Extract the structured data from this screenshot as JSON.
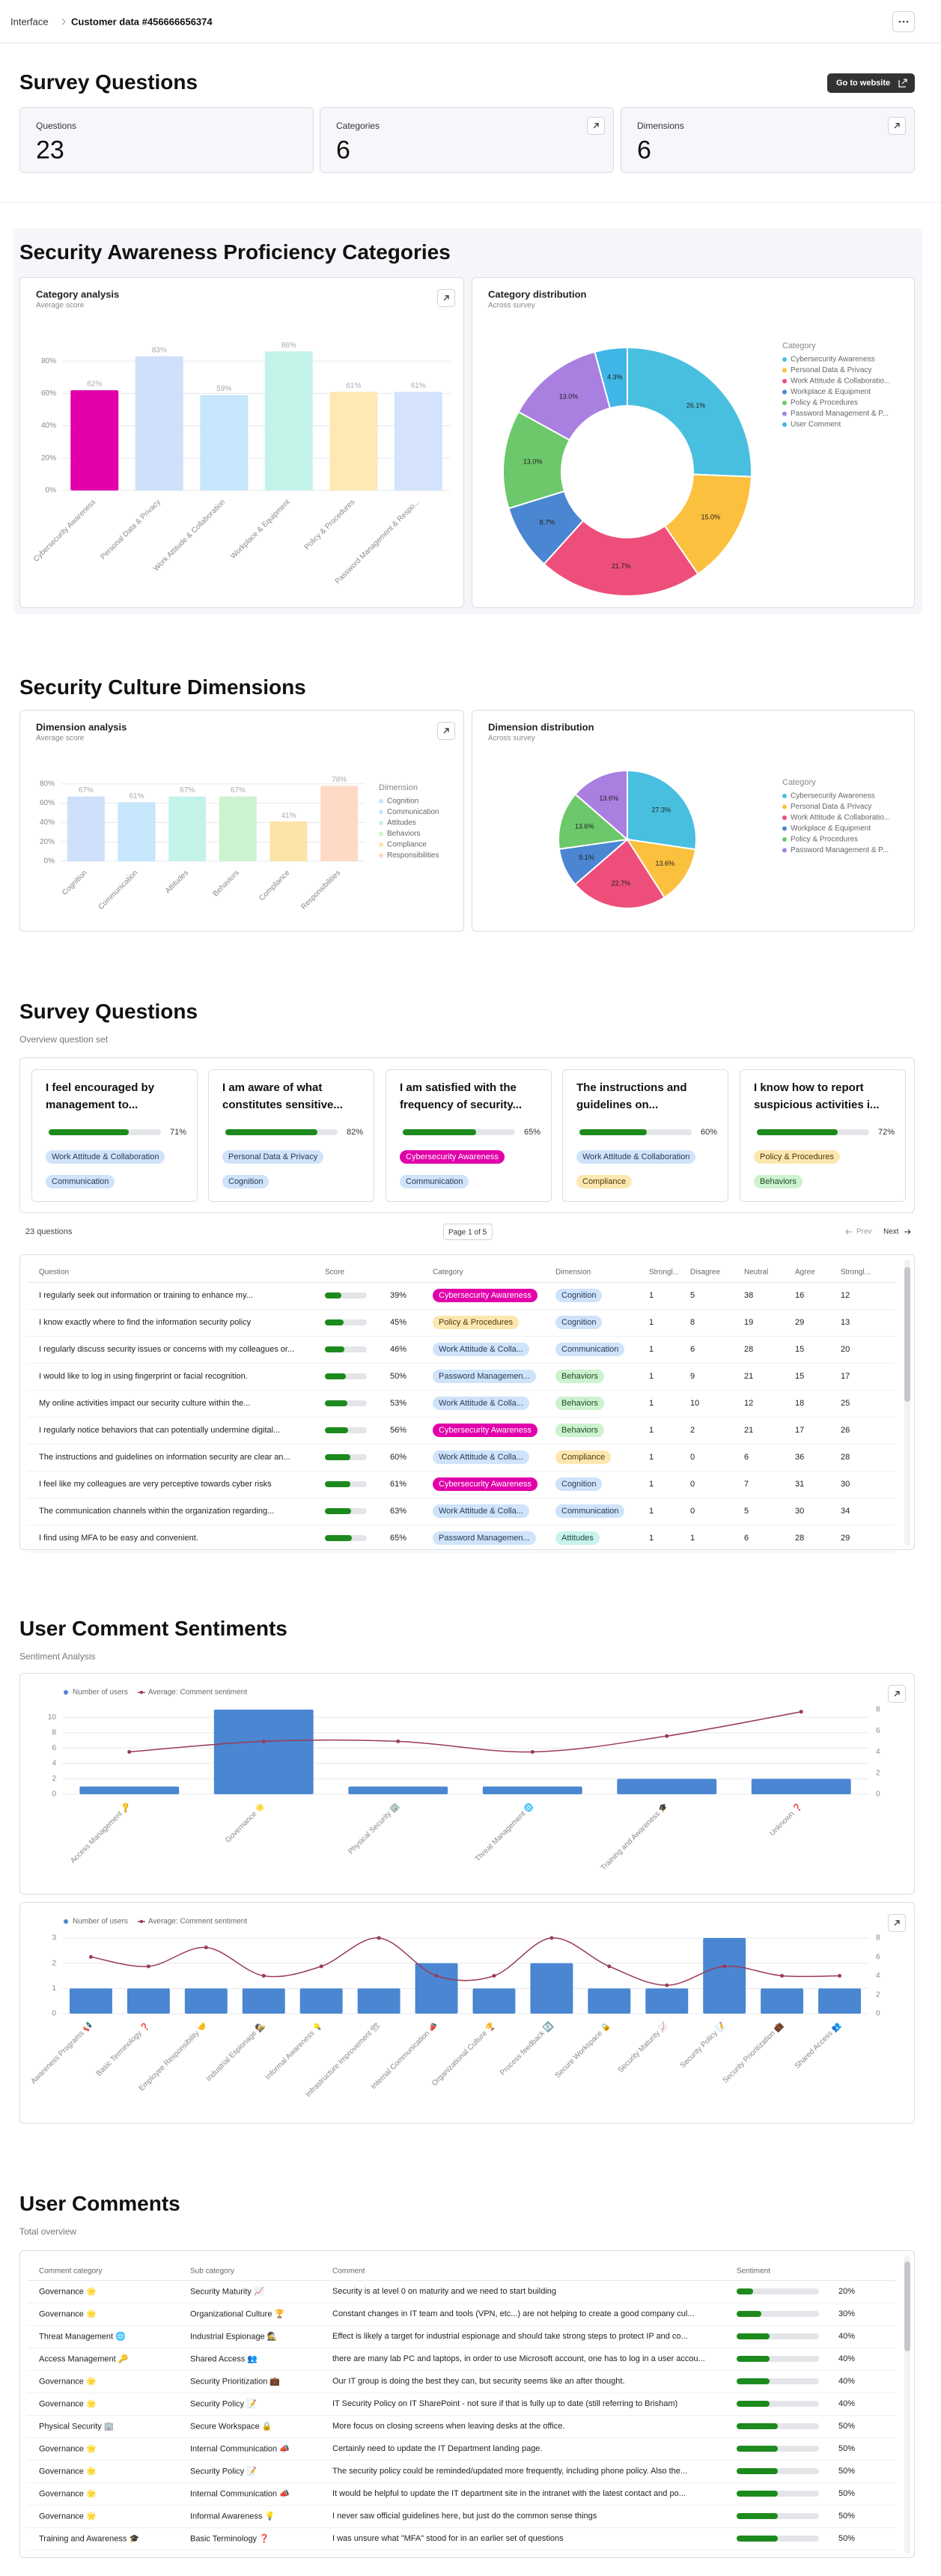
{
  "header": {
    "breadcrumb_root": "Interface",
    "breadcrumb_current": "Customer data #456666656374"
  },
  "overview": {
    "title": "Survey Questions",
    "button": "Go to website",
    "stats": [
      {
        "label": "Questions",
        "value": 23
      },
      {
        "label": "Categories",
        "value": 6
      },
      {
        "label": "Dimensions",
        "value": 6
      }
    ]
  },
  "sections": {
    "categories_title": "Security Awareness Proficiency Categories",
    "dimensions_title": "Security Culture Dimensions",
    "sentiments_title": "User Comment Sentiments",
    "sentiments_subtitle": "Sentiment Analysis"
  },
  "chart_data": [
    {
      "type": "bar",
      "title": "Category analysis",
      "subtitle": "Average score",
      "categories": [
        "Cybersecurity Awareness",
        "Personal Data & Privacy",
        "Work Attitude & Collaboration",
        "Workplace & Equipment",
        "Policy & Procedures",
        "Password Management & Respo..."
      ],
      "values": [
        62,
        83,
        59,
        86,
        61,
        61
      ],
      "value_labels": [
        "62%",
        "83%",
        "59%",
        "86%",
        "61%",
        "61%"
      ],
      "colors": [
        "#e100a9",
        "#cfe0fb",
        "#c6e6fb",
        "#c4f3ea",
        "#fde8b6",
        "#d4e3fb"
      ],
      "ylim": [
        0,
        100
      ],
      "yticks": [
        {
          "value": 0,
          "label": "0%"
        },
        {
          "value": 20,
          "label": "20%"
        },
        {
          "value": 40,
          "label": "40%"
        },
        {
          "value": 60,
          "label": "60%"
        },
        {
          "value": 80,
          "label": "80%"
        }
      ],
      "grid": true
    },
    {
      "type": "pie",
      "donut": true,
      "title": "Category distribution",
      "subtitle": "Across survey",
      "legend_title": "Category",
      "categories": [
        "Cybersecurity Awareness",
        "Personal Data & Privacy",
        "Work Attitude & Collaboratio...",
        "Workplace & Equipment",
        "Policy & Procedures",
        "Password Management & P...",
        "User Comment"
      ],
      "values": [
        26.1,
        15.0,
        21.7,
        8.7,
        13.0,
        13.0,
        4.3
      ],
      "value_labels": [
        "26.1%",
        "15.0%",
        "21.7%",
        "8.7%",
        "13.0%",
        "13.0%",
        "4.3%"
      ],
      "colors": [
        "#49bfe0",
        "#fbc03d",
        "#ee4e7a",
        "#4a86d1",
        "#6cc86a",
        "#a97fe0",
        "#3fb6e6"
      ]
    },
    {
      "type": "bar",
      "title": "Dimension analysis",
      "subtitle": "Average score",
      "legend_title": "Dimension",
      "categories": [
        "Cognition",
        "Communication",
        "Attitudes",
        "Behaviors",
        "Compliance",
        "Responsibilities"
      ],
      "values": [
        67,
        61,
        67,
        67,
        41,
        78
      ],
      "value_labels": [
        "67%",
        "61%",
        "67%",
        "67%",
        "41%",
        "78%"
      ],
      "colors": [
        "#cfe0fb",
        "#c6e6fb",
        "#c4f3ea",
        "#cdf2cf",
        "#fde3a6",
        "#fdd9c6"
      ],
      "ylim": [
        0,
        100
      ],
      "yticks": [
        {
          "value": 0,
          "label": "0%"
        },
        {
          "value": 20,
          "label": "20%"
        },
        {
          "value": 40,
          "label": "40%"
        },
        {
          "value": 60,
          "label": "60%"
        },
        {
          "value": 80,
          "label": "80%"
        }
      ],
      "grid": true
    },
    {
      "type": "pie",
      "donut": false,
      "title": "Dimension distribution",
      "subtitle": "Across survey",
      "legend_title": "Category",
      "categories": [
        "Cybersecurity Awareness",
        "Personal Data & Privacy",
        "Work Attitude & Collaboratio...",
        "Workplace & Equipment",
        "Policy & Procedures",
        "Password Management & P..."
      ],
      "values": [
        27.3,
        13.6,
        22.7,
        9.1,
        13.6,
        13.6
      ],
      "value_labels": [
        "27.3%",
        "13.6%",
        "22.7%",
        "9.1%",
        "13.6%",
        "13.6%"
      ],
      "colors": [
        "#49bfe0",
        "#fbc03d",
        "#ee4e7a",
        "#4a86d1",
        "#6cc86a",
        "#a97fe0"
      ]
    },
    {
      "type": "bar",
      "smooth": true,
      "categories": [
        "Access Management 🔑",
        "Governance 🌟",
        "Physical Security 🏢",
        "Threat Management 🌐",
        "Training and Awareness 🎓",
        "Unknown ❓"
      ],
      "series": [
        {
          "name": "Number of users",
          "color": "#4a86d1",
          "values": [
            1,
            11,
            1,
            1,
            2,
            2
          ]
        },
        {
          "name": "Average: Comment sentiment",
          "type": "line",
          "axis": "y2",
          "color": "#9b3a56",
          "values": [
            4,
            5,
            5,
            4,
            5.5,
            7.8
          ]
        }
      ],
      "ylim": [
        0,
        11
      ],
      "yticks": [
        0,
        2,
        4,
        6,
        8,
        10
      ],
      "y2lim": [
        0,
        8
      ],
      "y2ticks": [
        0,
        2,
        4,
        6,
        8
      ],
      "grid": true
    },
    {
      "type": "bar",
      "smooth": true,
      "categories": [
        "Awareness Programs 📢",
        "Basic Terminology ❓",
        "Employee Responsibility 🤝",
        "Industrial Espionage 🕵",
        "Informal Awareness 💡",
        "Infrastructure Improvement 🏗",
        "Internal Communication 📣",
        "Organizational Culture 🏆",
        "Process feedback 🔄",
        "Secure Workspace 🔒",
        "Security Maturity 📈",
        "Security Policy 📝",
        "Security Prioritization 💼",
        "Shared Access 👥"
      ],
      "series": [
        {
          "name": "Number of users",
          "color": "#4a86d1",
          "values": [
            1,
            1,
            1,
            1,
            1,
            1,
            2,
            1,
            2,
            1,
            1,
            3,
            1,
            1
          ]
        },
        {
          "name": "Average: Comment sentiment",
          "type": "line",
          "axis": "y2",
          "color": "#9b3a56",
          "values": [
            6,
            5,
            7,
            4,
            5,
            8,
            4,
            4,
            8,
            5,
            3,
            5,
            4,
            4
          ]
        }
      ],
      "ylim": [
        0,
        3
      ],
      "yticks": [
        0,
        1,
        2,
        3
      ],
      "y2lim": [
        0,
        8
      ],
      "y2ticks": [
        0,
        2,
        4,
        6,
        8
      ],
      "grid": true
    }
  ],
  "questions": {
    "title": "Survey Questions",
    "subtitle": "Overview question set",
    "cards": [
      {
        "text": "I feel encouraged by management to...",
        "score": "71%",
        "category": "Work Attitude & Collaboration",
        "dimension": "Communication"
      },
      {
        "text": "I am aware of what constitutes sensitive...",
        "score": "82%",
        "category": "Personal Data & Privacy",
        "dimension": "Cognition"
      },
      {
        "text": "I am satisfied with the frequency of security...",
        "score": "65%",
        "category": "Cybersecurity Awareness",
        "dimension": "Communication"
      },
      {
        "text": "The instructions and guidelines on...",
        "score": "60%",
        "category": "Work Attitude & Collaboration",
        "dimension": "Compliance"
      },
      {
        "text": "I know how to report suspicious activities i...",
        "score": "72%",
        "category": "Policy & Procedures",
        "dimension": "Behaviors"
      }
    ],
    "count": "23 questions",
    "page": "Page 1 of 5",
    "prev": "Prev",
    "next": "Next",
    "table": {
      "columns": [
        "Question",
        "Score",
        "Category",
        "Dimension",
        "Strongl...",
        "Disagree",
        "Neutral",
        "Agree",
        "Strongl..."
      ],
      "rows": [
        [
          "I regularly seek out information or training to enhance my...",
          "39%",
          "Cybersecurity Awareness",
          "Cognition",
          1,
          5,
          38,
          16,
          12
        ],
        [
          "I know exactly where to find the information security policy",
          "45%",
          "Policy & Procedures",
          "Cognition",
          1,
          8,
          19,
          29,
          13
        ],
        [
          "I regularly discuss security issues or concerns with my colleagues or...",
          "46%",
          "Work Attitude & Colla...",
          "Communication",
          1,
          6,
          28,
          15,
          20
        ],
        [
          "I would like to log in using fingerprint or facial recognition.",
          "50%",
          "Password Managemen...",
          "Behaviors",
          1,
          9,
          21,
          15,
          17
        ],
        [
          "My online activities impact our security culture within the...",
          "53%",
          "Work Attitude & Colla...",
          "Behaviors",
          1,
          10,
          12,
          18,
          25
        ],
        [
          "I regularly notice behaviors that can potentially undermine digital...",
          "56%",
          "Cybersecurity Awareness",
          "Behaviors",
          1,
          2,
          21,
          17,
          26
        ],
        [
          "The instructions and guidelines on information security are clear an...",
          "60%",
          "Work Attitude & Colla...",
          "Compliance",
          1,
          0,
          6,
          36,
          28
        ],
        [
          "I feel like my colleagues are very perceptive towards cyber risks",
          "61%",
          "Cybersecurity Awareness",
          "Cognition",
          1,
          0,
          7,
          31,
          30
        ],
        [
          "The communication channels within the organization regarding...",
          "63%",
          "Work Attitude & Colla...",
          "Communication",
          1,
          0,
          5,
          30,
          34
        ],
        [
          "I find using MFA to be easy and convenient.",
          "65%",
          "Password Managemen...",
          "Attitudes",
          1,
          1,
          6,
          28,
          29
        ]
      ]
    }
  },
  "comments": {
    "title": "User Comments",
    "subtitle": "Total overview",
    "columns": [
      "Comment category",
      "Sub category",
      "Comment",
      "Sentiment"
    ],
    "rows": [
      [
        "Governance 🌟",
        "Security Maturity 📈",
        "Security is at level 0 on maturity and we need to start building",
        "20%"
      ],
      [
        "Governance 🌟",
        "Organizational Culture 🏆",
        "Constant changes in IT team and tools (VPN, etc...) are not helping to create a good company cul...",
        "30%"
      ],
      [
        "Threat Management 🌐",
        "Industrial Espionage 🕵",
        "Effect is likely a target for industrial espionage and should take strong steps to protect IP and co...",
        "40%"
      ],
      [
        "Access Management 🔑",
        "Shared Access 👥",
        "there are many lab PC and laptops, in order to use Microsoft account, one has to log in a user accou...",
        "40%"
      ],
      [
        "Governance 🌟",
        "Security Prioritization 💼",
        "Our IT group is doing the best they can, but security seems like an after thought.",
        "40%"
      ],
      [
        "Governance 🌟",
        "Security Policy 📝",
        "IT Security Policy on IT SharePoint - not sure if that is fully up to date (still referring to Brisham)",
        "40%"
      ],
      [
        "Physical Security 🏢",
        "Secure Workspace 🔒",
        "More focus on closing screens when leaving desks at the office.",
        "50%"
      ],
      [
        "Governance 🌟",
        "Internal Communication 📣",
        "Certainly need to update the IT Department  landing page.",
        "50%"
      ],
      [
        "Governance 🌟",
        "Security Policy 📝",
        "The security policy could be reminded/updated more frequently, including phone policy. Also the...",
        "50%"
      ],
      [
        "Governance 🌟",
        "Internal Communication 📣",
        "It would be helpful to update the IT department site in the intranet with the latest contact and po...",
        "50%"
      ],
      [
        "Governance 🌟",
        "Informal Awareness 💡",
        "I never saw official guidelines here, but just do the common sense things",
        "50%"
      ],
      [
        "Training and Awareness 🎓",
        "Basic Terminology ❓",
        "I was unsure what \"MFA\" stood for in an earlier set of questions",
        "50%"
      ]
    ]
  },
  "tag_colors": {
    "Work Attitude & Collaboration": [
      "#cfe3fa",
      "#2a3b55"
    ],
    "Work Attitude & Colla...": [
      "#cfe3fa",
      "#2a3b55"
    ],
    "Personal Data & Privacy": [
      "#cfe3fa",
      "#2a3b55"
    ],
    "Password Managemen...": [
      "#cfe3fa",
      "#2a3b55"
    ],
    "Cybersecurity Awareness": [
      "#e100a9",
      "#ffffff"
    ],
    "Policy & Procedures": [
      "#fde7b0",
      "#4a3a10"
    ],
    "Communication": [
      "#cfe3fa",
      "#2a3b55"
    ],
    "Cognition": [
      "#cfe3fa",
      "#2a3b55"
    ],
    "Compliance": [
      "#fde7b0",
      "#4a3a10"
    ],
    "Behaviors": [
      "#cdf2cf",
      "#1f4a22"
    ],
    "Attitudes": [
      "#c9f3ec",
      "#1c4a44"
    ]
  }
}
